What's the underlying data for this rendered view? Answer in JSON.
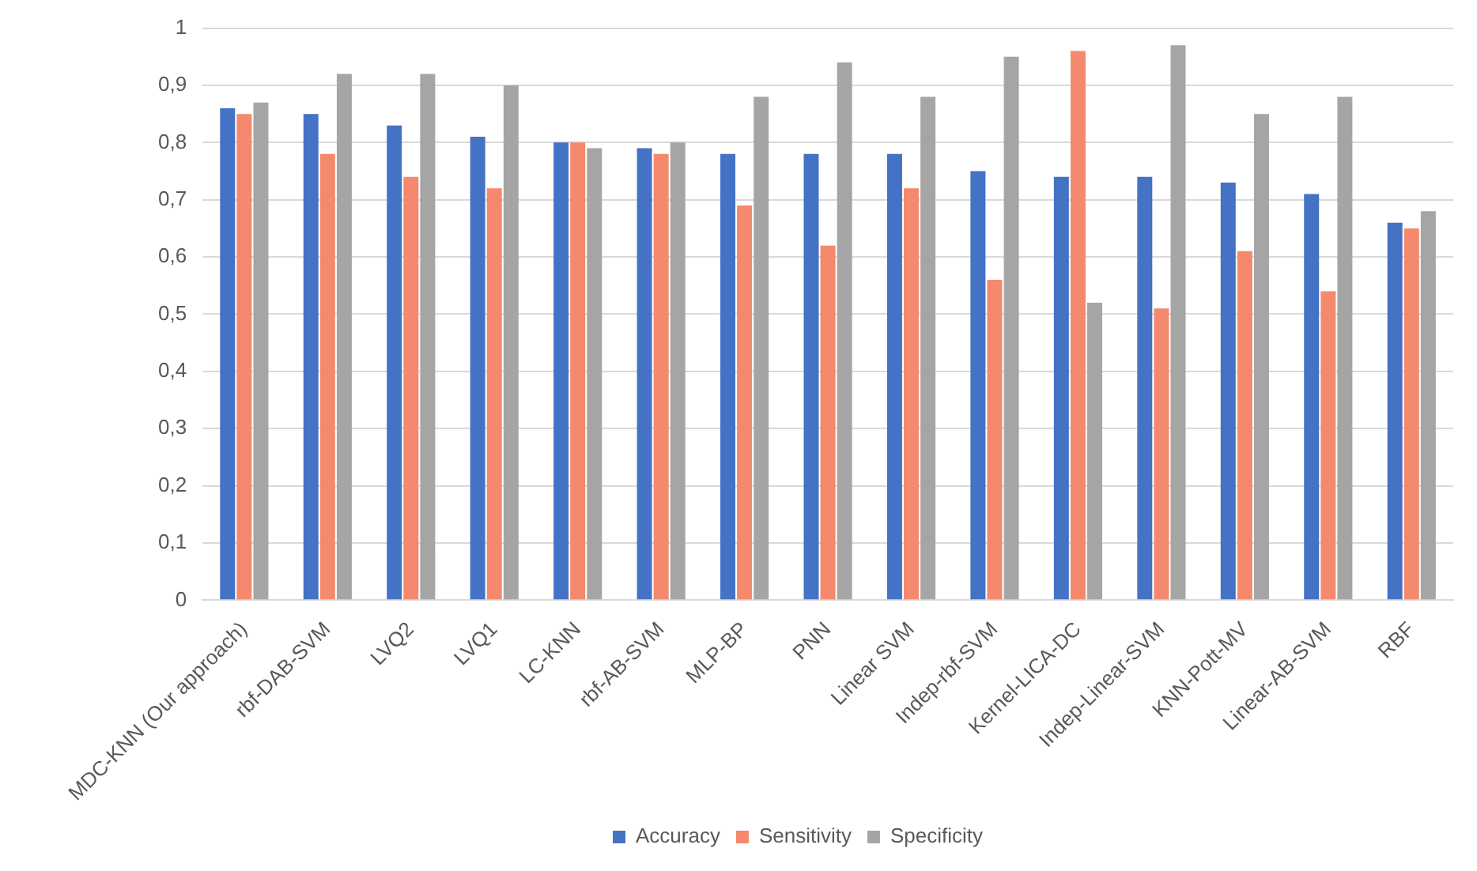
{
  "chart_data": {
    "type": "bar",
    "categories": [
      "MDC-KNN (Our approach)",
      "rbf-DAB-SVM",
      "LVQ2",
      "LVQ1",
      "LC-KNN",
      "rbf-AB-SVM",
      "MLP-BP",
      "PNN",
      "Linear SVM",
      "Indep-rbf-SVM",
      "Kernel-LICA-DC",
      "Indep-Linear-SVM",
      "KNN-Pott-MV",
      "Linear-AB-SVM",
      "RBF"
    ],
    "series": [
      {
        "name": "Accuracy",
        "color": "#4472c4",
        "values": [
          0.86,
          0.85,
          0.83,
          0.81,
          0.8,
          0.79,
          0.78,
          0.78,
          0.78,
          0.75,
          0.74,
          0.74,
          0.73,
          0.71,
          0.66
        ]
      },
      {
        "name": "Sensitivity",
        "color": "#f4896d",
        "values": [
          0.85,
          0.78,
          0.74,
          0.72,
          0.8,
          0.78,
          0.69,
          0.62,
          0.72,
          0.56,
          0.96,
          0.51,
          0.61,
          0.54,
          0.65
        ]
      },
      {
        "name": "Specificity",
        "color": "#a5a5a5",
        "values": [
          0.87,
          0.92,
          0.92,
          0.9,
          0.79,
          0.8,
          0.88,
          0.94,
          0.88,
          0.95,
          0.52,
          0.97,
          0.85,
          0.88,
          0.68
        ]
      }
    ],
    "ylim": [
      0,
      1
    ],
    "yticks": [
      0,
      {
        "value": 0.1,
        "label": "0,1"
      },
      {
        "value": 0.2,
        "label": "0,2"
      },
      {
        "value": 0.3,
        "label": "0,3"
      },
      {
        "value": 0.4,
        "label": "0,4"
      },
      {
        "value": 0.5,
        "label": "0,5"
      },
      {
        "value": 0.6,
        "label": "0,6"
      },
      {
        "value": 0.7,
        "label": "0,7"
      },
      {
        "value": 0.8,
        "label": "0,8"
      },
      {
        "value": 0.9,
        "label": "0,9"
      },
      1
    ],
    "grid": "y",
    "legend": "bottom"
  }
}
